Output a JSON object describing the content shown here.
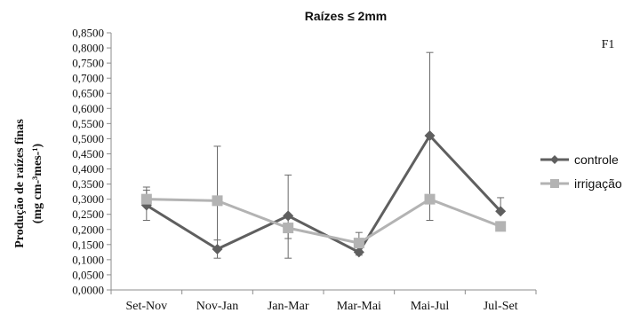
{
  "chart_data": {
    "type": "line",
    "title": "Raízes ≤ 2mm",
    "panel_label": "F1",
    "ylabel_line1": "Produção de raízes finas",
    "ylabel_line2": "(mg cm-³mes-¹)",
    "xlabel": "",
    "categories": [
      "Set-Nov",
      "Nov-Jan",
      "Jan-Mar",
      "Mar-Mai",
      "Mai-Jul",
      "Jul-Set"
    ],
    "ylim": [
      0,
      0.85
    ],
    "ytick_step": 0.05,
    "ytick_labels": [
      "0,0000",
      "0,0500",
      "0,1000",
      "0,1500",
      "0,2000",
      "0,2500",
      "0,3000",
      "0,3500",
      "0,4000",
      "0,4500",
      "0,5000",
      "0,5500",
      "0,6000",
      "0,6500",
      "0,7000",
      "0,7500",
      "0,8000",
      "0,8500"
    ],
    "legend_position": "right",
    "grid": false,
    "series": [
      {
        "name": "controle",
        "marker": "diamond",
        "color": "#5f5f5f",
        "values": [
          0.28,
          0.135,
          0.245,
          0.125,
          0.51,
          0.26
        ],
        "error_upper": [
          0.34,
          0.475,
          0.38,
          0.15,
          0.785,
          0.305
        ],
        "error_lower": [
          0.23,
          0.105,
          0.105,
          0.115,
          0.23,
          0.26
        ]
      },
      {
        "name": "irrigação",
        "marker": "square",
        "color": "#b3b3b3",
        "values": [
          0.3,
          0.295,
          0.205,
          0.155,
          0.3,
          0.21
        ],
        "error_upper": [
          0.33,
          0.295,
          0.205,
          0.19,
          0.3,
          0.21
        ],
        "error_lower": [
          0.3,
          0.165,
          0.17,
          0.155,
          0.3,
          0.21
        ]
      }
    ]
  }
}
